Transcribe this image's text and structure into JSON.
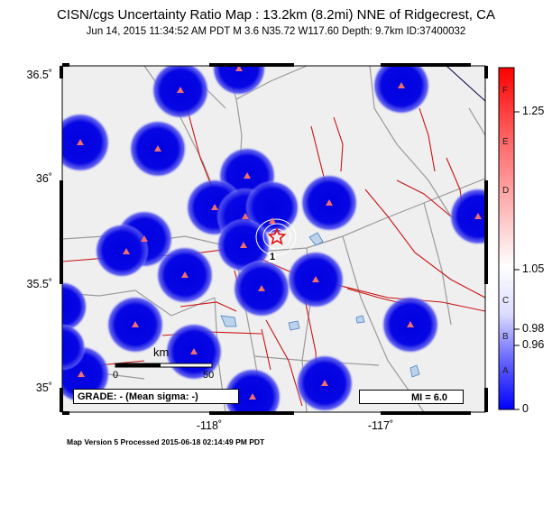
{
  "header": {
    "title": "CISN/cgs Uncertainty Ratio Map : 13.2km (8.2mi) NNE of Ridgecrest, CA",
    "subtitle": "Jun 14, 2015 11:34:52 AM PDT   M 3.6   N35.72 W117.60   Depth: 9.7km   ID:37400032"
  },
  "map": {
    "lat_labels": [
      "36.5˚",
      "36˚",
      "35.5˚",
      "35˚"
    ],
    "lon_labels": [
      "-118˚",
      "-117˚"
    ],
    "scale_bar": {
      "unit": "km",
      "start": "0",
      "end": "50"
    },
    "grade_text": "GRADE: - (Mean sigma: -)",
    "mi_text": "MI = 6.0",
    "epicenter_label": "1",
    "station_icon": "triangle-station-icon",
    "epicenter_icon": "star-epicenter-icon",
    "colors": {
      "land": "#efefef",
      "station_halo": "#1010e6",
      "station": "#f06e6e",
      "fault": "#c81414",
      "road": "#9a9a9a",
      "water": "#7aa7d6"
    }
  },
  "colorbar": {
    "letters": [
      "F",
      "E",
      "D",
      "C",
      "B",
      "A"
    ],
    "ticks": [
      "1.25",
      "1.05",
      "0.98",
      "0.96",
      "0"
    ]
  },
  "footer": {
    "text": "Map Version 5 Processed 2015-06-18 02:14:49 PM PDT"
  }
}
